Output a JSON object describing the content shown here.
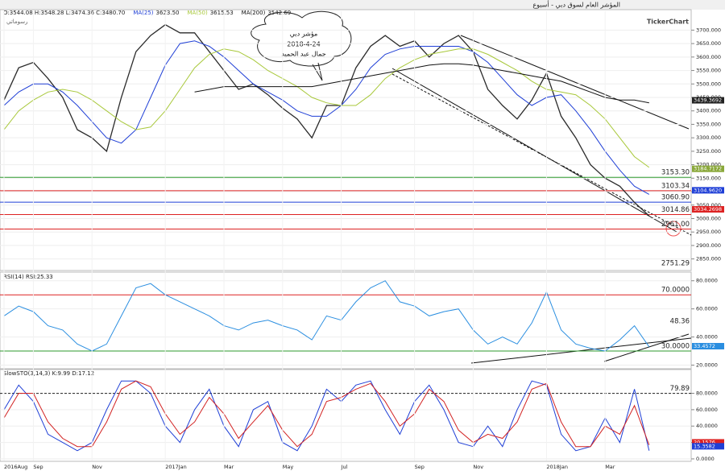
{
  "header": {
    "title": "المؤشر العام لسوق دبي - أسبوع",
    "tab": "رسوماتي",
    "brand": "TickerChart",
    "annotation": [
      "مؤشر دبي",
      "2018-4-24",
      "جمال عبد الحميد"
    ]
  },
  "chart_data": [
    {
      "type": "line",
      "legend": "O:3544.08 H:3548.28 L:3474.36 C:3480.70",
      "ylim": [
        2810,
        3770
      ],
      "grid": true,
      "yticks": [
        {
          "value": 3700,
          "label": "3700.000"
        },
        {
          "value": 3650,
          "label": "3650.000"
        },
        {
          "value": 3600,
          "label": "3600.000"
        },
        {
          "value": 3550,
          "label": "3550.000"
        },
        {
          "value": 3500,
          "label": "3500.000"
        },
        {
          "value": 3450,
          "label": "3450.000"
        },
        {
          "value": 3400,
          "label": "3400.000"
        },
        {
          "value": 3350,
          "label": "3350.000"
        },
        {
          "value": 3300,
          "label": "3300.000"
        },
        {
          "value": 3250,
          "label": "3250.000"
        },
        {
          "value": 3200,
          "label": "3200.000"
        },
        {
          "value": 3150,
          "label": "3150.000"
        },
        {
          "value": 3100,
          "label": "3100.000"
        },
        {
          "value": 3050,
          "label": "3050.000"
        },
        {
          "value": 3000,
          "label": "3000.000"
        },
        {
          "value": 2950,
          "label": "2950.000"
        },
        {
          "value": 2900,
          "label": "2900.000"
        },
        {
          "value": 2850,
          "label": "2850.000"
        }
      ],
      "series": [
        {
          "color": "#2b2b2b",
          "values": [
            3440,
            3560,
            3580,
            3520,
            3450,
            3330,
            3300,
            3250,
            3450,
            3620,
            3680,
            3720,
            3690,
            3690,
            3620,
            3550,
            3480,
            3500,
            3460,
            3410,
            3370,
            3300,
            3420,
            3420,
            3560,
            3640,
            3680,
            3640,
            3660,
            3600,
            3650,
            3680,
            3620,
            3480,
            3420,
            3370,
            3440,
            3540,
            3380,
            3300,
            3200,
            3150,
            3120,
            3060,
            3010
          ]
        },
        {
          "name": "MA(25)",
          "legend_value": "3623.50",
          "color": "#1f3fd6",
          "values": [
            3420,
            3470,
            3500,
            3500,
            3470,
            3420,
            3360,
            3300,
            3280,
            3330,
            3450,
            3570,
            3650,
            3660,
            3640,
            3600,
            3550,
            3500,
            3470,
            3440,
            3400,
            3380,
            3380,
            3420,
            3480,
            3560,
            3610,
            3630,
            3640,
            3640,
            3640,
            3640,
            3620,
            3580,
            3520,
            3460,
            3420,
            3450,
            3460,
            3400,
            3330,
            3250,
            3180,
            3120,
            3090
          ]
        },
        {
          "name": "MA(50)",
          "legend_value": "3615.53",
          "color": "#a8c83a",
          "values": [
            3330,
            3400,
            3440,
            3470,
            3480,
            3470,
            3440,
            3400,
            3360,
            3330,
            3340,
            3400,
            3480,
            3560,
            3610,
            3630,
            3620,
            3590,
            3550,
            3520,
            3490,
            3450,
            3430,
            3420,
            3420,
            3460,
            3520,
            3560,
            3590,
            3610,
            3620,
            3630,
            3630,
            3610,
            3580,
            3550,
            3510,
            3480,
            3470,
            3460,
            3420,
            3370,
            3300,
            3230,
            3190
          ]
        },
        {
          "name": "MA(200)",
          "legend_value": "3542.69",
          "color": "#111111",
          "values": [
            null,
            null,
            null,
            null,
            null,
            null,
            null,
            null,
            null,
            null,
            null,
            null,
            null,
            3470,
            3480,
            3490,
            3490,
            3490,
            3490,
            3490,
            3490,
            3490,
            3500,
            3510,
            3520,
            3530,
            3540,
            3550,
            3560,
            3570,
            3575,
            3575,
            3570,
            3560,
            3550,
            3540,
            3530,
            3520,
            3510,
            3490,
            3470,
            3450,
            3440,
            3440,
            3430
          ]
        }
      ],
      "levels": [
        {
          "value": 3153.3,
          "label": "3153.30",
          "color": "#2e9a2e"
        },
        {
          "value": 3103.34,
          "label": "3103.34",
          "color": "#d22"
        },
        {
          "value": 3060.9,
          "label": "3060.90",
          "color": "#1f3fd6"
        },
        {
          "value": 3014.86,
          "label": "3014.86",
          "color": "#d22"
        },
        {
          "value": 2961,
          "label": "2961.00",
          "color": "#d22"
        }
      ],
      "annotations": [
        "2751.29"
      ],
      "markers": [
        {
          "value": 3439.3692,
          "label": "3439.3692",
          "color": "#222"
        },
        {
          "value": 3184.7172,
          "label": "3184.7172",
          "color": "#8aa83a"
        },
        {
          "value": 3104.962,
          "label": "3104.9620",
          "color": "#1f3fd6"
        },
        {
          "value": 3034.2698,
          "label": "3034.2698",
          "color": "#d22"
        }
      ]
    },
    {
      "type": "line",
      "legend": "RSI(14)  RSI:25.33",
      "ylim": [
        18,
        85
      ],
      "grid": true,
      "yticks": [
        {
          "value": 80,
          "label": "80.0000"
        },
        {
          "value": 60,
          "label": "60.0000"
        },
        {
          "value": 40,
          "label": "40.0000"
        },
        {
          "value": 20,
          "label": "20.0000"
        }
      ],
      "series": [
        {
          "color": "#2a8ee0",
          "values": [
            55,
            62,
            58,
            48,
            45,
            35,
            30,
            35,
            55,
            75,
            78,
            70,
            65,
            60,
            55,
            48,
            45,
            50,
            52,
            48,
            45,
            38,
            55,
            52,
            65,
            75,
            80,
            65,
            62,
            55,
            58,
            60,
            45,
            35,
            40,
            35,
            50,
            72,
            45,
            35,
            32,
            30,
            38,
            48,
            33
          ]
        }
      ],
      "levels": [
        {
          "value": 70,
          "label": "70.0000",
          "color": "#d22"
        },
        {
          "value": 30,
          "label": "30.0000",
          "color": "#2e9a2e"
        }
      ],
      "annotations": [
        48.36
      ],
      "markers": [
        {
          "value": 33.4572,
          "label": "33.4572",
          "color": "#2a8ee0"
        }
      ]
    },
    {
      "type": "line",
      "legend": "SlowSTO(3,14,3)  K:9.99  D:17.12",
      "ylim": [
        -2,
        108
      ],
      "grid": true,
      "yticks": [
        {
          "value": 80,
          "label": "80.0000"
        },
        {
          "value": 60,
          "label": "60.0000"
        },
        {
          "value": 40,
          "label": "40.0000"
        },
        {
          "value": 20,
          "label": "20.0000"
        },
        {
          "value": 0,
          "label": "0.0000"
        }
      ],
      "series": [
        {
          "color": "#1f3fd6",
          "values": [
            60,
            90,
            70,
            30,
            20,
            10,
            20,
            60,
            95,
            95,
            80,
            40,
            20,
            60,
            85,
            40,
            15,
            60,
            70,
            20,
            10,
            40,
            85,
            70,
            90,
            95,
            60,
            30,
            70,
            90,
            60,
            20,
            15,
            40,
            15,
            60,
            95,
            90,
            30,
            10,
            15,
            50,
            20,
            85,
            10
          ]
        },
        {
          "color": "#d22222",
          "values": [
            50,
            80,
            80,
            45,
            25,
            15,
            15,
            45,
            85,
            95,
            88,
            55,
            30,
            45,
            75,
            55,
            25,
            45,
            65,
            35,
            15,
            30,
            70,
            75,
            85,
            92,
            70,
            40,
            55,
            85,
            70,
            35,
            20,
            30,
            25,
            45,
            85,
            92,
            45,
            15,
            15,
            40,
            30,
            65,
            17
          ]
        }
      ],
      "levels": [
        {
          "value": 79.89,
          "label": "79.89",
          "color": "#222"
        }
      ],
      "markers": [
        {
          "value": 20.1576,
          "label": "20.1576",
          "color": "#d22"
        },
        {
          "value": 15.3582,
          "label": "15.3582",
          "color": "#1f3fd6"
        }
      ],
      "categories": [
        "2016Aug",
        null,
        "Sep",
        null,
        null,
        null,
        "Nov",
        null,
        null,
        null,
        null,
        "2017Jan",
        null,
        null,
        null,
        "Mar",
        null,
        null,
        null,
        "May",
        null,
        null,
        null,
        "Jul",
        null,
        null,
        null,
        null,
        "Sep",
        null,
        null,
        null,
        "Nov",
        null,
        null,
        null,
        null,
        "2018Jan",
        null,
        null,
        null,
        "Mar",
        null,
        null,
        null
      ]
    }
  ]
}
